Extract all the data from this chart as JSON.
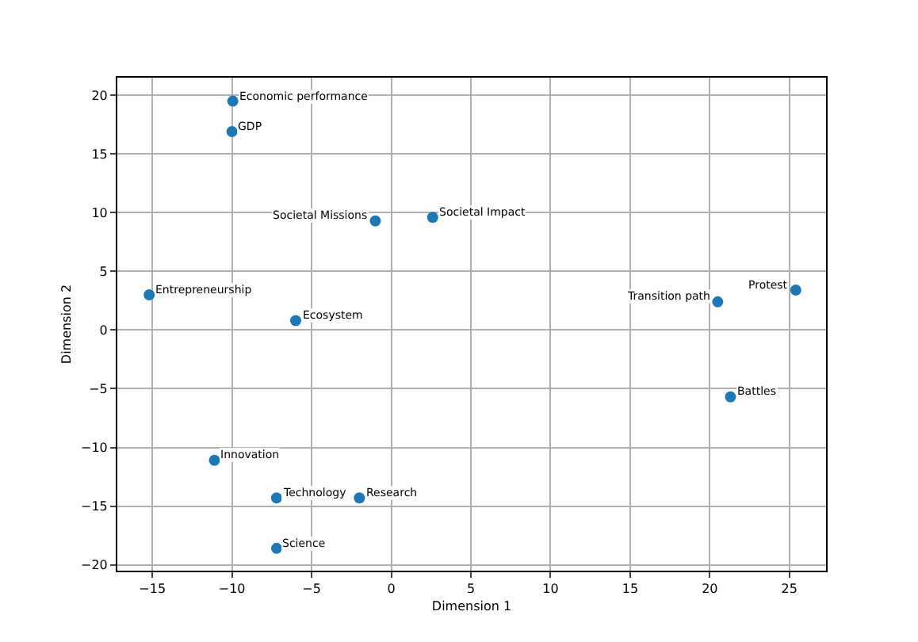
{
  "chart_data": {
    "type": "scatter",
    "xlabel": "Dimension 1",
    "ylabel": "Dimension 2",
    "x": [
      -9.95,
      -10.0,
      -1.0,
      2.6,
      -15.2,
      -6.0,
      20.5,
      25.4,
      21.3,
      -11.1,
      -7.2,
      -2.0,
      -7.2
    ],
    "series": [
      {
        "color": "#1f77b4",
        "values": [
          19.5,
          16.9,
          9.3,
          9.6,
          3.0,
          0.8,
          2.4,
          3.4,
          -5.7,
          -11.1,
          -14.3,
          -14.3,
          -18.6
        ]
      }
    ],
    "annotations": [
      {
        "text": "Economic performance",
        "x": -9.95,
        "y": 19.5
      },
      {
        "text": "GDP",
        "x": -10.0,
        "y": 16.9
      },
      {
        "text": "Societal Missions",
        "x": -1.0,
        "y": 9.3
      },
      {
        "text": "Societal Impact",
        "x": 2.6,
        "y": 9.6
      },
      {
        "text": "Entrepreneurship",
        "x": -15.2,
        "y": 3.0
      },
      {
        "text": "Ecosystem",
        "x": -6.0,
        "y": 0.8
      },
      {
        "text": "Transition path",
        "x": 20.5,
        "y": 2.4
      },
      {
        "text": "Protest",
        "x": 25.4,
        "y": 3.4
      },
      {
        "text": "Battles",
        "x": 21.3,
        "y": -5.7
      },
      {
        "text": "Innovation",
        "x": -11.1,
        "y": -11.1
      },
      {
        "text": "Technology",
        "x": -7.2,
        "y": -14.3
      },
      {
        "text": "Research",
        "x": -2.0,
        "y": -14.3
      },
      {
        "text": "Science",
        "x": -7.2,
        "y": -18.6
      }
    ],
    "xlim": [
      -17.2,
      27.3
    ],
    "ylim": [
      -20.5,
      21.5
    ],
    "xticks": [
      {
        "value": -15,
        "label": "−15"
      },
      {
        "value": -10,
        "label": "−10"
      },
      {
        "value": -5,
        "label": "−5"
      },
      0,
      5,
      10,
      15,
      20,
      25
    ],
    "yticks": [
      {
        "value": -20,
        "label": "−20"
      },
      {
        "value": -15,
        "label": "−15"
      },
      {
        "value": -10,
        "label": "−10"
      },
      {
        "value": -5,
        "label": "−5"
      },
      0,
      5,
      10,
      15,
      20
    ],
    "grid": true,
    "marker": "circle"
  }
}
